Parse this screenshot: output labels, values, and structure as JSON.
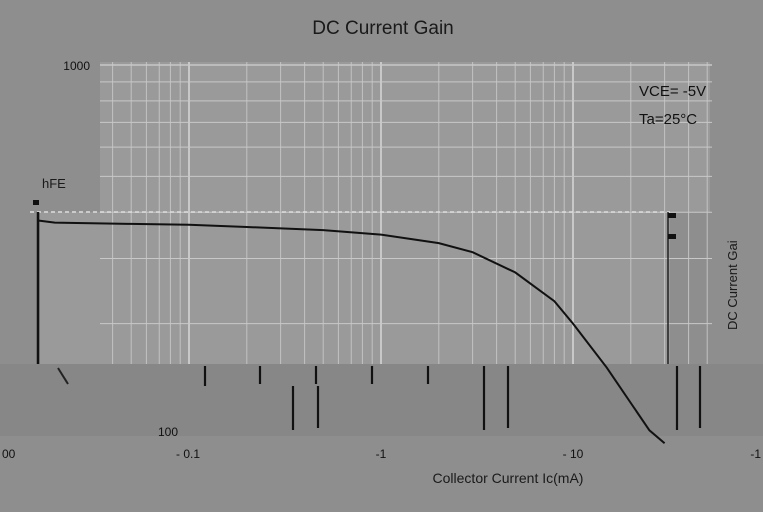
{
  "chart_data": {
    "type": "line",
    "title": "DC Current Gain",
    "xlabel": "Collector Current   Ic(mA)",
    "ylabel_left": "hFE",
    "ylabel_right": "DC Current Gai",
    "x_scale": "log",
    "y_scale": "log",
    "x_ticks": [
      "- 0.1",
      "-1",
      "- 10"
    ],
    "x_edge_labels": [
      "00",
      "-1"
    ],
    "y_ticks": [
      "1000",
      "100"
    ],
    "annotations": [
      "VCE= -5V",
      "Ta=25°C"
    ],
    "grid": true,
    "series": [
      {
        "x": [
          -0.01,
          -0.02,
          -0.05,
          -0.1,
          -0.2,
          -0.5,
          -1,
          -2,
          -3,
          -5,
          -8,
          -10,
          -15,
          -20,
          -25,
          -30
        ],
        "y": [
          380,
          375,
          372,
          370,
          365,
          358,
          348,
          330,
          312,
          275,
          230,
          200,
          152,
          122,
          103,
          95
        ]
      }
    ]
  }
}
